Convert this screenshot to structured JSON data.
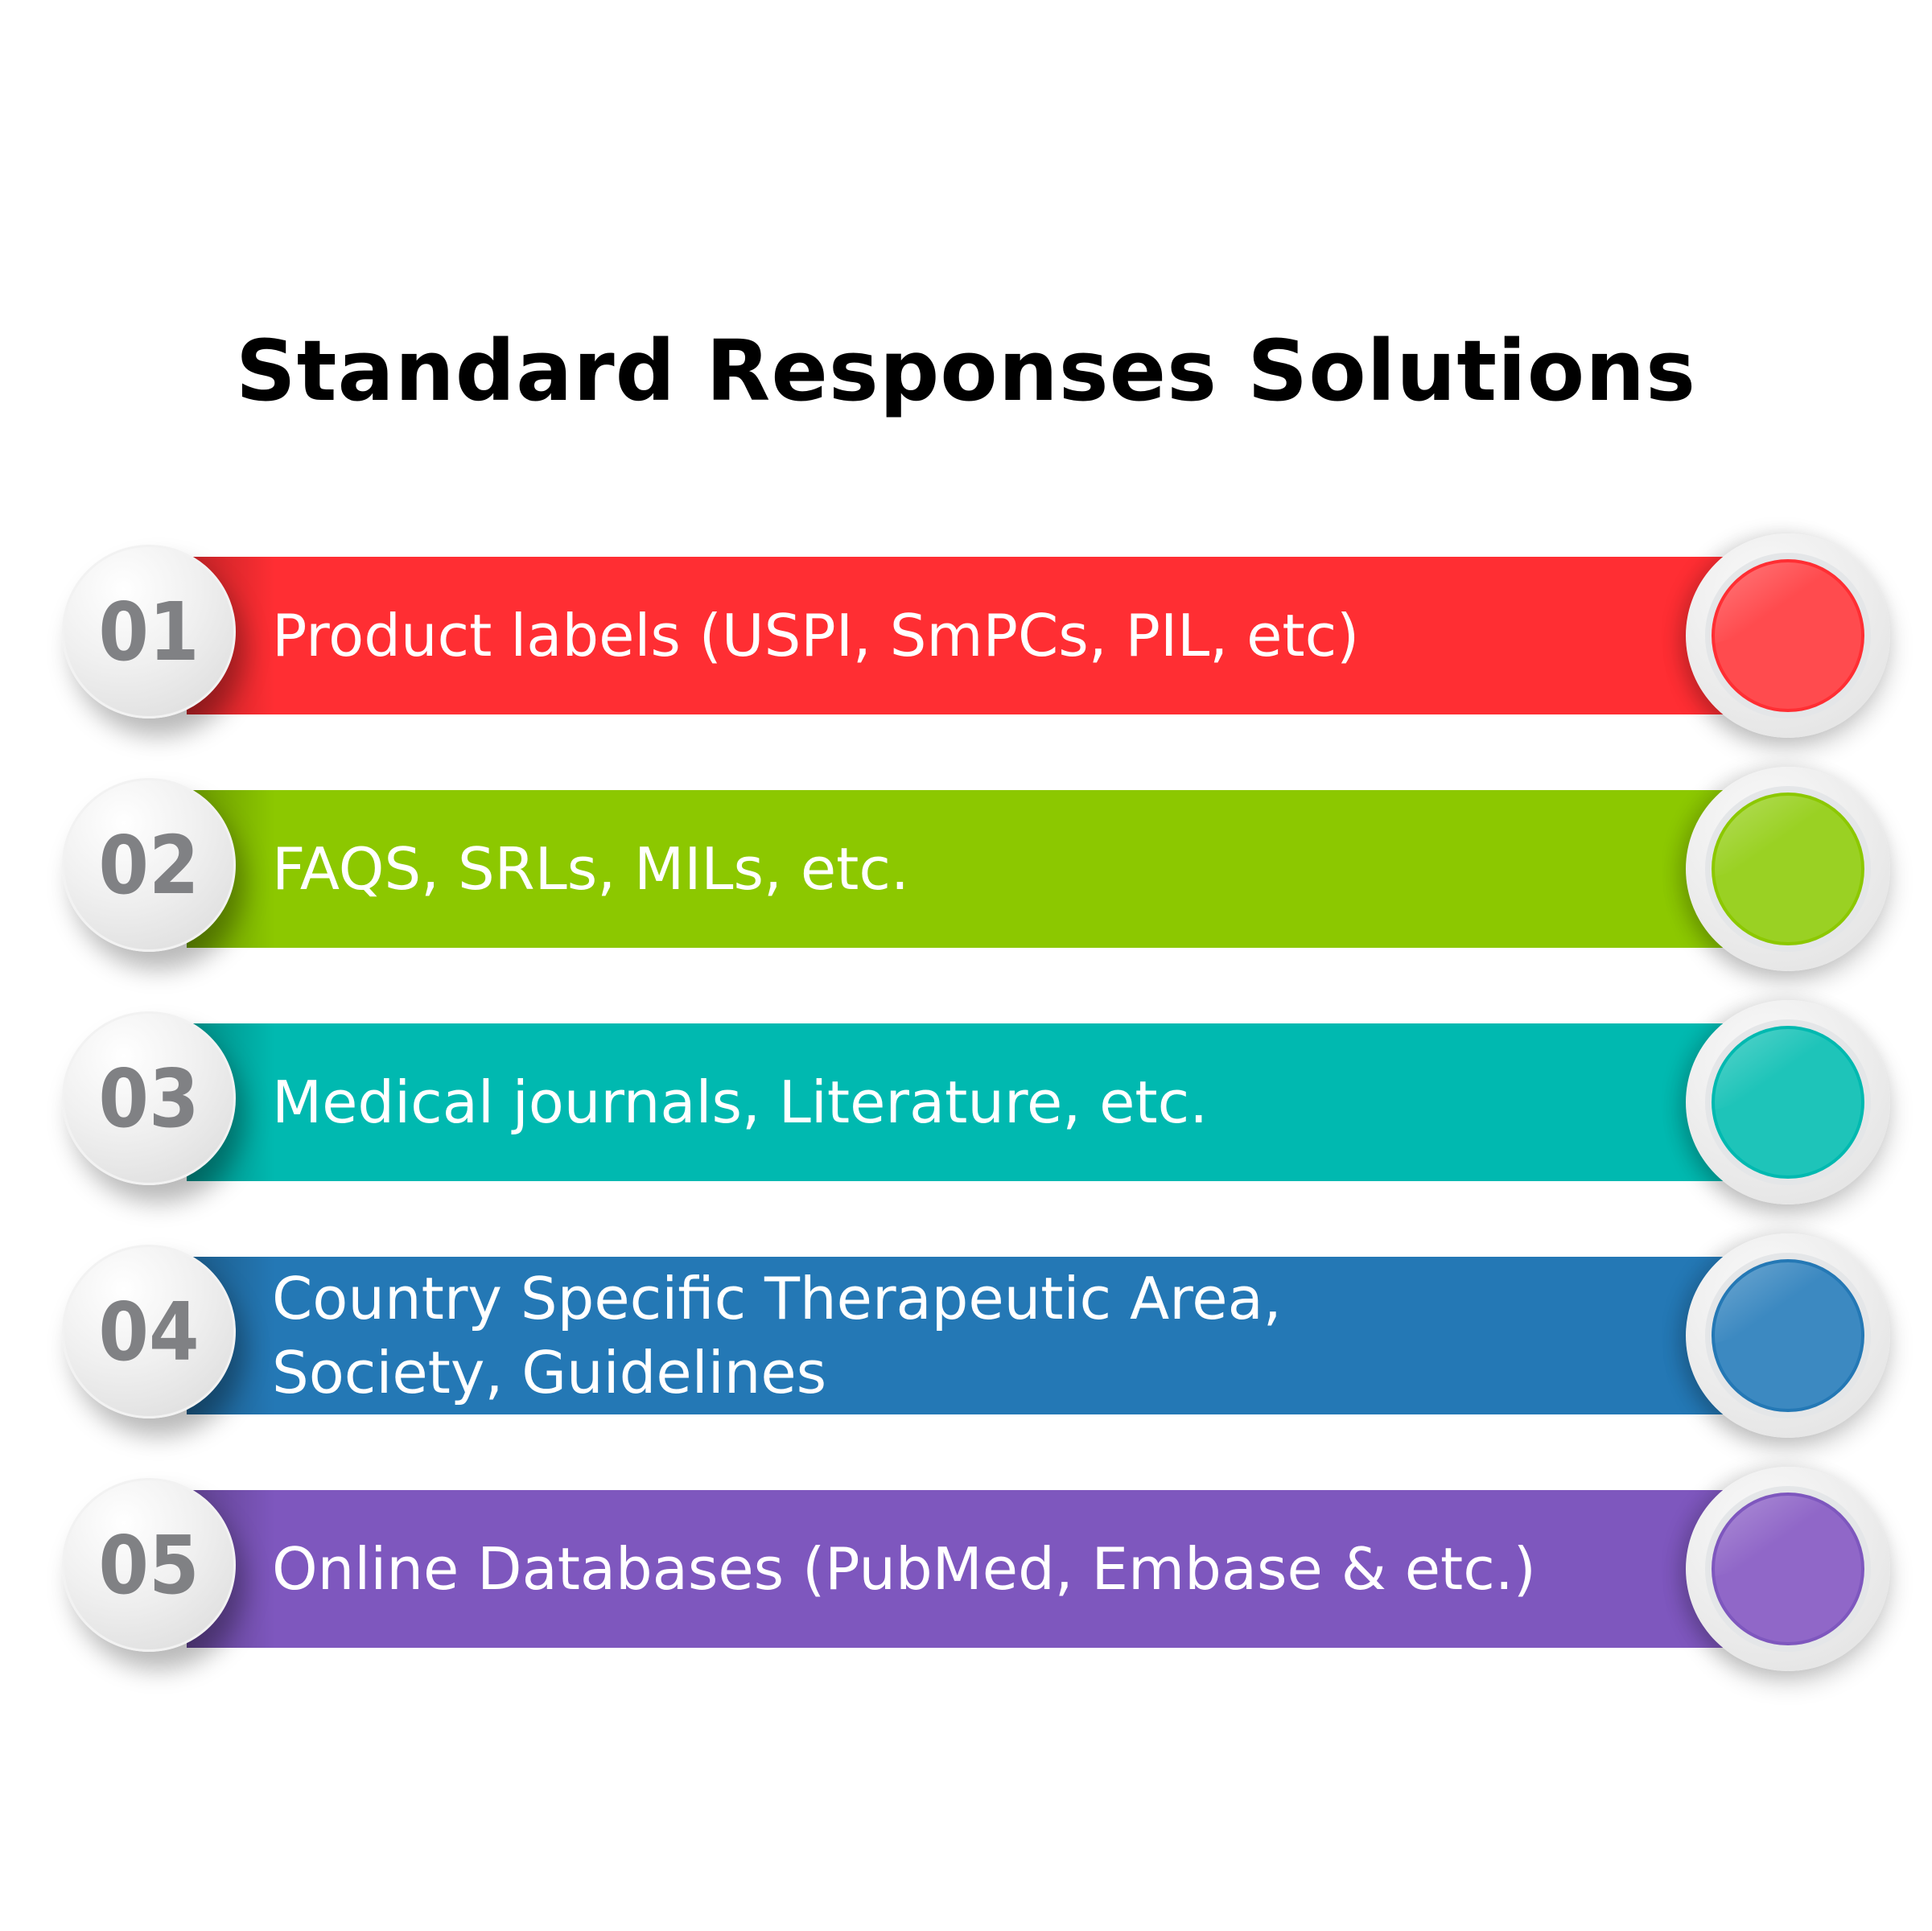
{
  "title": "Standard Responses Solutions",
  "items": [
    {
      "number": "01",
      "label": "Product labels (USPI, SmPCs, PIL, etc)",
      "color": "#FF2E33",
      "knob_color": "#FF4B4E"
    },
    {
      "number": "02",
      "label": "FAQS, SRLs, MILs, etc.",
      "color": "#8CC800",
      "knob_color": "#9AD123"
    },
    {
      "number": "03",
      "label": "Medical journals, Literature, etc.",
      "color": "#00B9B0",
      "knob_color": "#1EC4B9"
    },
    {
      "number": "04",
      "label": "Country Specific Therapeutic Area,\nSociety, Guidelines",
      "color": "#2478B5",
      "knob_color": "#3C89C1"
    },
    {
      "number": "05",
      "label": "Online Databases (PubMed, Embase & etc.)",
      "color": "#7E57BE",
      "knob_color": "#9067C8"
    }
  ]
}
